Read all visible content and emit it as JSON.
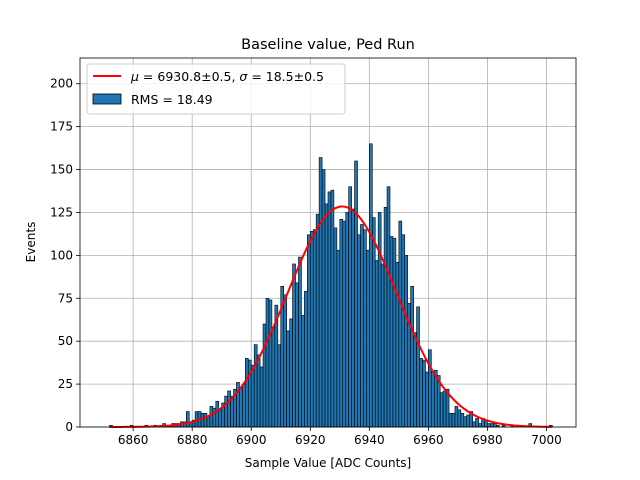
{
  "chart_data": {
    "type": "bar",
    "title": "Baseline value, Ped Run",
    "xlabel": "Sample Value [ADC Counts]",
    "ylabel": "Events",
    "xlim": [
      6842,
      7010
    ],
    "ylim": [
      0,
      215
    ],
    "xticks": [
      6860,
      6880,
      6900,
      6920,
      6940,
      6960,
      6980,
      7000
    ],
    "yticks": [
      0,
      25,
      50,
      75,
      100,
      125,
      150,
      175,
      200
    ],
    "grid": true,
    "legend_position": "top-left",
    "bin_width": 1,
    "series": [
      {
        "name": "RMS = 18.49",
        "kind": "histogram",
        "color": "#1f77b4",
        "edgecolor": "#000000",
        "x": [
          6852,
          6859,
          6864,
          6867,
          6869,
          6870,
          6871,
          6872,
          6873,
          6874,
          6875,
          6876,
          6877,
          6878,
          6879,
          6880,
          6881,
          6882,
          6883,
          6884,
          6885,
          6886,
          6887,
          6888,
          6889,
          6890,
          6891,
          6892,
          6893,
          6894,
          6895,
          6896,
          6897,
          6898,
          6899,
          6900,
          6901,
          6902,
          6903,
          6904,
          6905,
          6906,
          6907,
          6908,
          6909,
          6910,
          6911,
          6912,
          6913,
          6914,
          6915,
          6916,
          6917,
          6918,
          6919,
          6920,
          6921,
          6922,
          6923,
          6924,
          6925,
          6926,
          6927,
          6928,
          6929,
          6930,
          6931,
          6932,
          6933,
          6934,
          6935,
          6936,
          6937,
          6938,
          6939,
          6940,
          6941,
          6942,
          6943,
          6944,
          6945,
          6946,
          6947,
          6948,
          6949,
          6950,
          6951,
          6952,
          6953,
          6954,
          6955,
          6956,
          6957,
          6958,
          6959,
          6960,
          6961,
          6962,
          6963,
          6964,
          6965,
          6966,
          6967,
          6968,
          6969,
          6970,
          6971,
          6972,
          6973,
          6974,
          6975,
          6976,
          6977,
          6978,
          6979,
          6980,
          6981,
          6982,
          6983,
          6985,
          6988,
          6994,
          7001
        ],
        "values": [
          1,
          1,
          1,
          1,
          1,
          2,
          1,
          1,
          2,
          2,
          2,
          3,
          3,
          9,
          3,
          4,
          9,
          9,
          8,
          8,
          6,
          12,
          11,
          15,
          10,
          14,
          18,
          21,
          18,
          22,
          26,
          23,
          25,
          40,
          39,
          36,
          48,
          42,
          35,
          60,
          75,
          74,
          58,
          71,
          48,
          82,
          77,
          56,
          63,
          95,
          84,
          99,
          65,
          79,
          112,
          114,
          115,
          124,
          157,
          150,
          130,
          137,
          138,
          116,
          103,
          121,
          120,
          125,
          140,
          127,
          155,
          112,
          118,
          115,
          103,
          165,
          122,
          97,
          125,
          95,
          128,
          140,
          111,
          110,
          96,
          120,
          112,
          100,
          72,
          82,
          55,
          70,
          40,
          39,
          32,
          45,
          32,
          33,
          30,
          20,
          21,
          22,
          8,
          8,
          12,
          10,
          8,
          6,
          7,
          9,
          3,
          5,
          2,
          5,
          4,
          2,
          2,
          2,
          1,
          1,
          1,
          2,
          1
        ]
      }
    ],
    "fit": {
      "name": "$\\mu = 6930.8 \\pm 0.5, \\sigma = 18.5 \\pm 0.5$",
      "type": "gaussian",
      "color": "#ff0000",
      "mu": 6930.8,
      "sigma": 18.5,
      "amplitude": 128.5,
      "x_range": [
        6852,
        7002
      ]
    }
  },
  "legend": {
    "fit_label_mu": "μ",
    "fit_label_rest_1": " = 6930.8±0.5, ",
    "fit_label_sigma": "σ",
    "fit_label_rest_2": " = 18.5±0.5",
    "hist_label": "RMS = 18.49"
  }
}
